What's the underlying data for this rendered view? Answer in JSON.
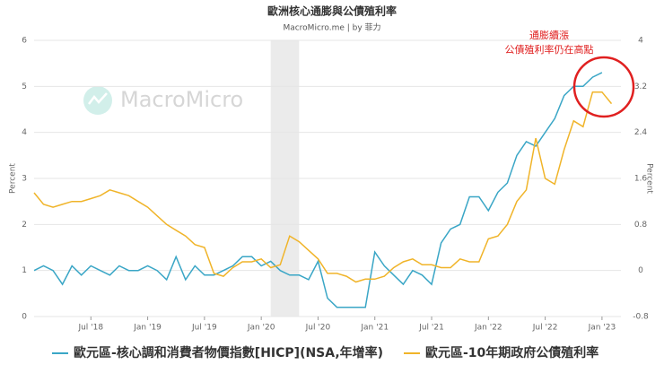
{
  "chart_data": {
    "type": "line",
    "title": "歐洲核心通膨與公債殖利率",
    "subtitle": "MacroMicro.me | by 菲力",
    "watermark": "MacroMicro",
    "y_label": "Percent",
    "y2_label": "Percent",
    "annotation": [
      "通膨續漲",
      "公債殖利率仍在高點"
    ],
    "annotation_color": "#e02020",
    "shaded_range": [
      "2020-02",
      "2020-05"
    ],
    "x": [
      "2018-01",
      "2018-02",
      "2018-03",
      "2018-04",
      "2018-05",
      "2018-06",
      "2018-07",
      "2018-08",
      "2018-09",
      "2018-10",
      "2018-11",
      "2018-12",
      "2019-01",
      "2019-02",
      "2019-03",
      "2019-04",
      "2019-05",
      "2019-06",
      "2019-07",
      "2019-08",
      "2019-09",
      "2019-10",
      "2019-11",
      "2019-12",
      "2020-01",
      "2020-02",
      "2020-03",
      "2020-04",
      "2020-05",
      "2020-06",
      "2020-07",
      "2020-08",
      "2020-09",
      "2020-10",
      "2020-11",
      "2020-12",
      "2021-01",
      "2021-02",
      "2021-03",
      "2021-04",
      "2021-05",
      "2021-06",
      "2021-07",
      "2021-08",
      "2021-09",
      "2021-10",
      "2021-11",
      "2021-12",
      "2022-01",
      "2022-02",
      "2022-03",
      "2022-04",
      "2022-05",
      "2022-06",
      "2022-07",
      "2022-08",
      "2022-09",
      "2022-10",
      "2022-11",
      "2022-12",
      "2023-01",
      "2023-02"
    ],
    "series": [
      {
        "name": "歐元區-核心調和消費者物價指數[HICP](NSA,年增率)",
        "color": "#3aa6c6",
        "axis": "y",
        "values": [
          1.0,
          1.1,
          1.0,
          0.7,
          1.1,
          0.9,
          1.1,
          1.0,
          0.9,
          1.1,
          1.0,
          1.0,
          1.1,
          1.0,
          0.8,
          1.3,
          0.8,
          1.1,
          0.9,
          0.9,
          1.0,
          1.1,
          1.3,
          1.3,
          1.1,
          1.2,
          1.0,
          0.9,
          0.9,
          0.8,
          1.2,
          0.4,
          0.2,
          0.2,
          0.2,
          0.2,
          1.4,
          1.1,
          0.9,
          0.7,
          1.0,
          0.9,
          0.7,
          1.6,
          1.9,
          2.0,
          2.6,
          2.6,
          2.3,
          2.7,
          2.9,
          3.5,
          3.8,
          3.7,
          4.0,
          4.3,
          4.8,
          5.0,
          5.0,
          5.2,
          5.3,
          null
        ]
      },
      {
        "name": "歐元區-10年期政府公債殖利率",
        "color": "#f0b429",
        "axis": "y2",
        "values": [
          1.35,
          1.15,
          1.1,
          1.15,
          1.2,
          1.2,
          1.25,
          1.3,
          1.4,
          1.35,
          1.3,
          1.2,
          1.1,
          0.95,
          0.8,
          0.7,
          0.6,
          0.45,
          0.4,
          -0.05,
          -0.1,
          0.05,
          0.15,
          0.15,
          0.2,
          0.05,
          0.1,
          0.6,
          0.5,
          0.35,
          0.2,
          -0.05,
          -0.05,
          -0.1,
          -0.2,
          -0.15,
          -0.15,
          -0.1,
          0.05,
          0.15,
          0.2,
          0.1,
          0.1,
          0.05,
          0.05,
          0.2,
          0.15,
          0.15,
          0.55,
          0.6,
          0.8,
          1.2,
          1.4,
          2.3,
          1.6,
          1.5,
          2.1,
          2.6,
          2.5,
          3.1,
          3.1,
          2.9
        ]
      }
    ],
    "xlim": [
      "2018-01",
      "2023-03"
    ],
    "xticks": [
      {
        "value": "2018-07",
        "label": "Jul '18"
      },
      {
        "value": "2019-01",
        "label": "Jan '19"
      },
      {
        "value": "2019-07",
        "label": "Jul '19"
      },
      {
        "value": "2020-01",
        "label": "Jan '20"
      },
      {
        "value": "2020-07",
        "label": "Jul '20"
      },
      {
        "value": "2021-01",
        "label": "Jan '21"
      },
      {
        "value": "2021-07",
        "label": "Jul '21"
      },
      {
        "value": "2022-01",
        "label": "Jan '22"
      },
      {
        "value": "2022-07",
        "label": "Jul '22"
      },
      {
        "value": "2023-01",
        "label": "Jan '23"
      }
    ],
    "ylim": [
      0,
      6
    ],
    "yticks": [
      0,
      1,
      2,
      3,
      4,
      5,
      6
    ],
    "y2lim": [
      -0.8,
      4
    ],
    "y2ticks": [
      -0.8,
      0,
      0.8,
      1.6,
      2.4,
      3.2,
      4
    ],
    "grid": true
  }
}
